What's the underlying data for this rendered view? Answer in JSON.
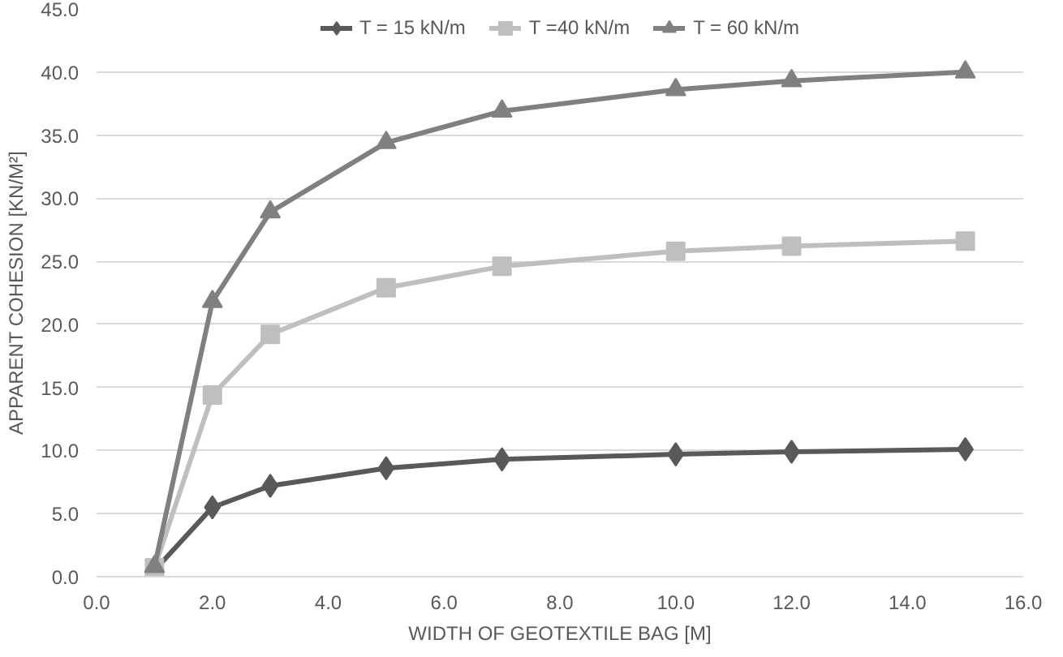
{
  "chart_data": {
    "type": "line",
    "xlabel": "WIDTH OF GEOTEXTILE BAG [M]",
    "ylabel": "APPARENT COHESION [KN/M²]",
    "x": [
      1,
      2,
      3,
      5,
      7,
      10,
      12,
      15
    ],
    "series": [
      {
        "name": "T = 15 kN/m",
        "color": "#595959",
        "marker": "diamond",
        "values": [
          0.5,
          5.5,
          7.2,
          8.6,
          9.3,
          9.7,
          9.9,
          10.1
        ]
      },
      {
        "name": "T =40 kN/m",
        "color": "#bfbfbf",
        "marker": "square",
        "values": [
          0.7,
          14.4,
          19.2,
          22.9,
          24.6,
          25.8,
          26.2,
          26.6
        ]
      },
      {
        "name": "T = 60 kN/m",
        "color": "#808080",
        "marker": "triangle",
        "values": [
          0.8,
          21.8,
          28.9,
          34.4,
          36.9,
          38.6,
          39.3,
          40.0
        ]
      }
    ],
    "xlim": [
      0,
      16
    ],
    "xticks": [
      {
        "value": 0,
        "label": "0.0"
      },
      {
        "value": 2,
        "label": "2.0"
      },
      {
        "value": 4,
        "label": "4.0"
      },
      {
        "value": 6,
        "label": "6.0"
      },
      {
        "value": 8,
        "label": "8.0"
      },
      {
        "value": 10,
        "label": "10.0"
      },
      {
        "value": 12,
        "label": "12.0"
      },
      {
        "value": 14,
        "label": "14.0"
      },
      {
        "value": 16,
        "label": "16.0"
      }
    ],
    "ylim": [
      0,
      45
    ],
    "yticks": [
      {
        "value": 0,
        "label": "0.0"
      },
      {
        "value": 5,
        "label": "5.0"
      },
      {
        "value": 10,
        "label": "10.0"
      },
      {
        "value": 15,
        "label": "15.0"
      },
      {
        "value": 20,
        "label": "20.0"
      },
      {
        "value": 25,
        "label": "25.0"
      },
      {
        "value": 30,
        "label": "30.0"
      },
      {
        "value": 35,
        "label": "35.0"
      },
      {
        "value": 40,
        "label": "40.0"
      },
      {
        "value": 45,
        "label": "45.0"
      }
    ],
    "grid": "y",
    "legend": "top",
    "line_style": "solid"
  }
}
